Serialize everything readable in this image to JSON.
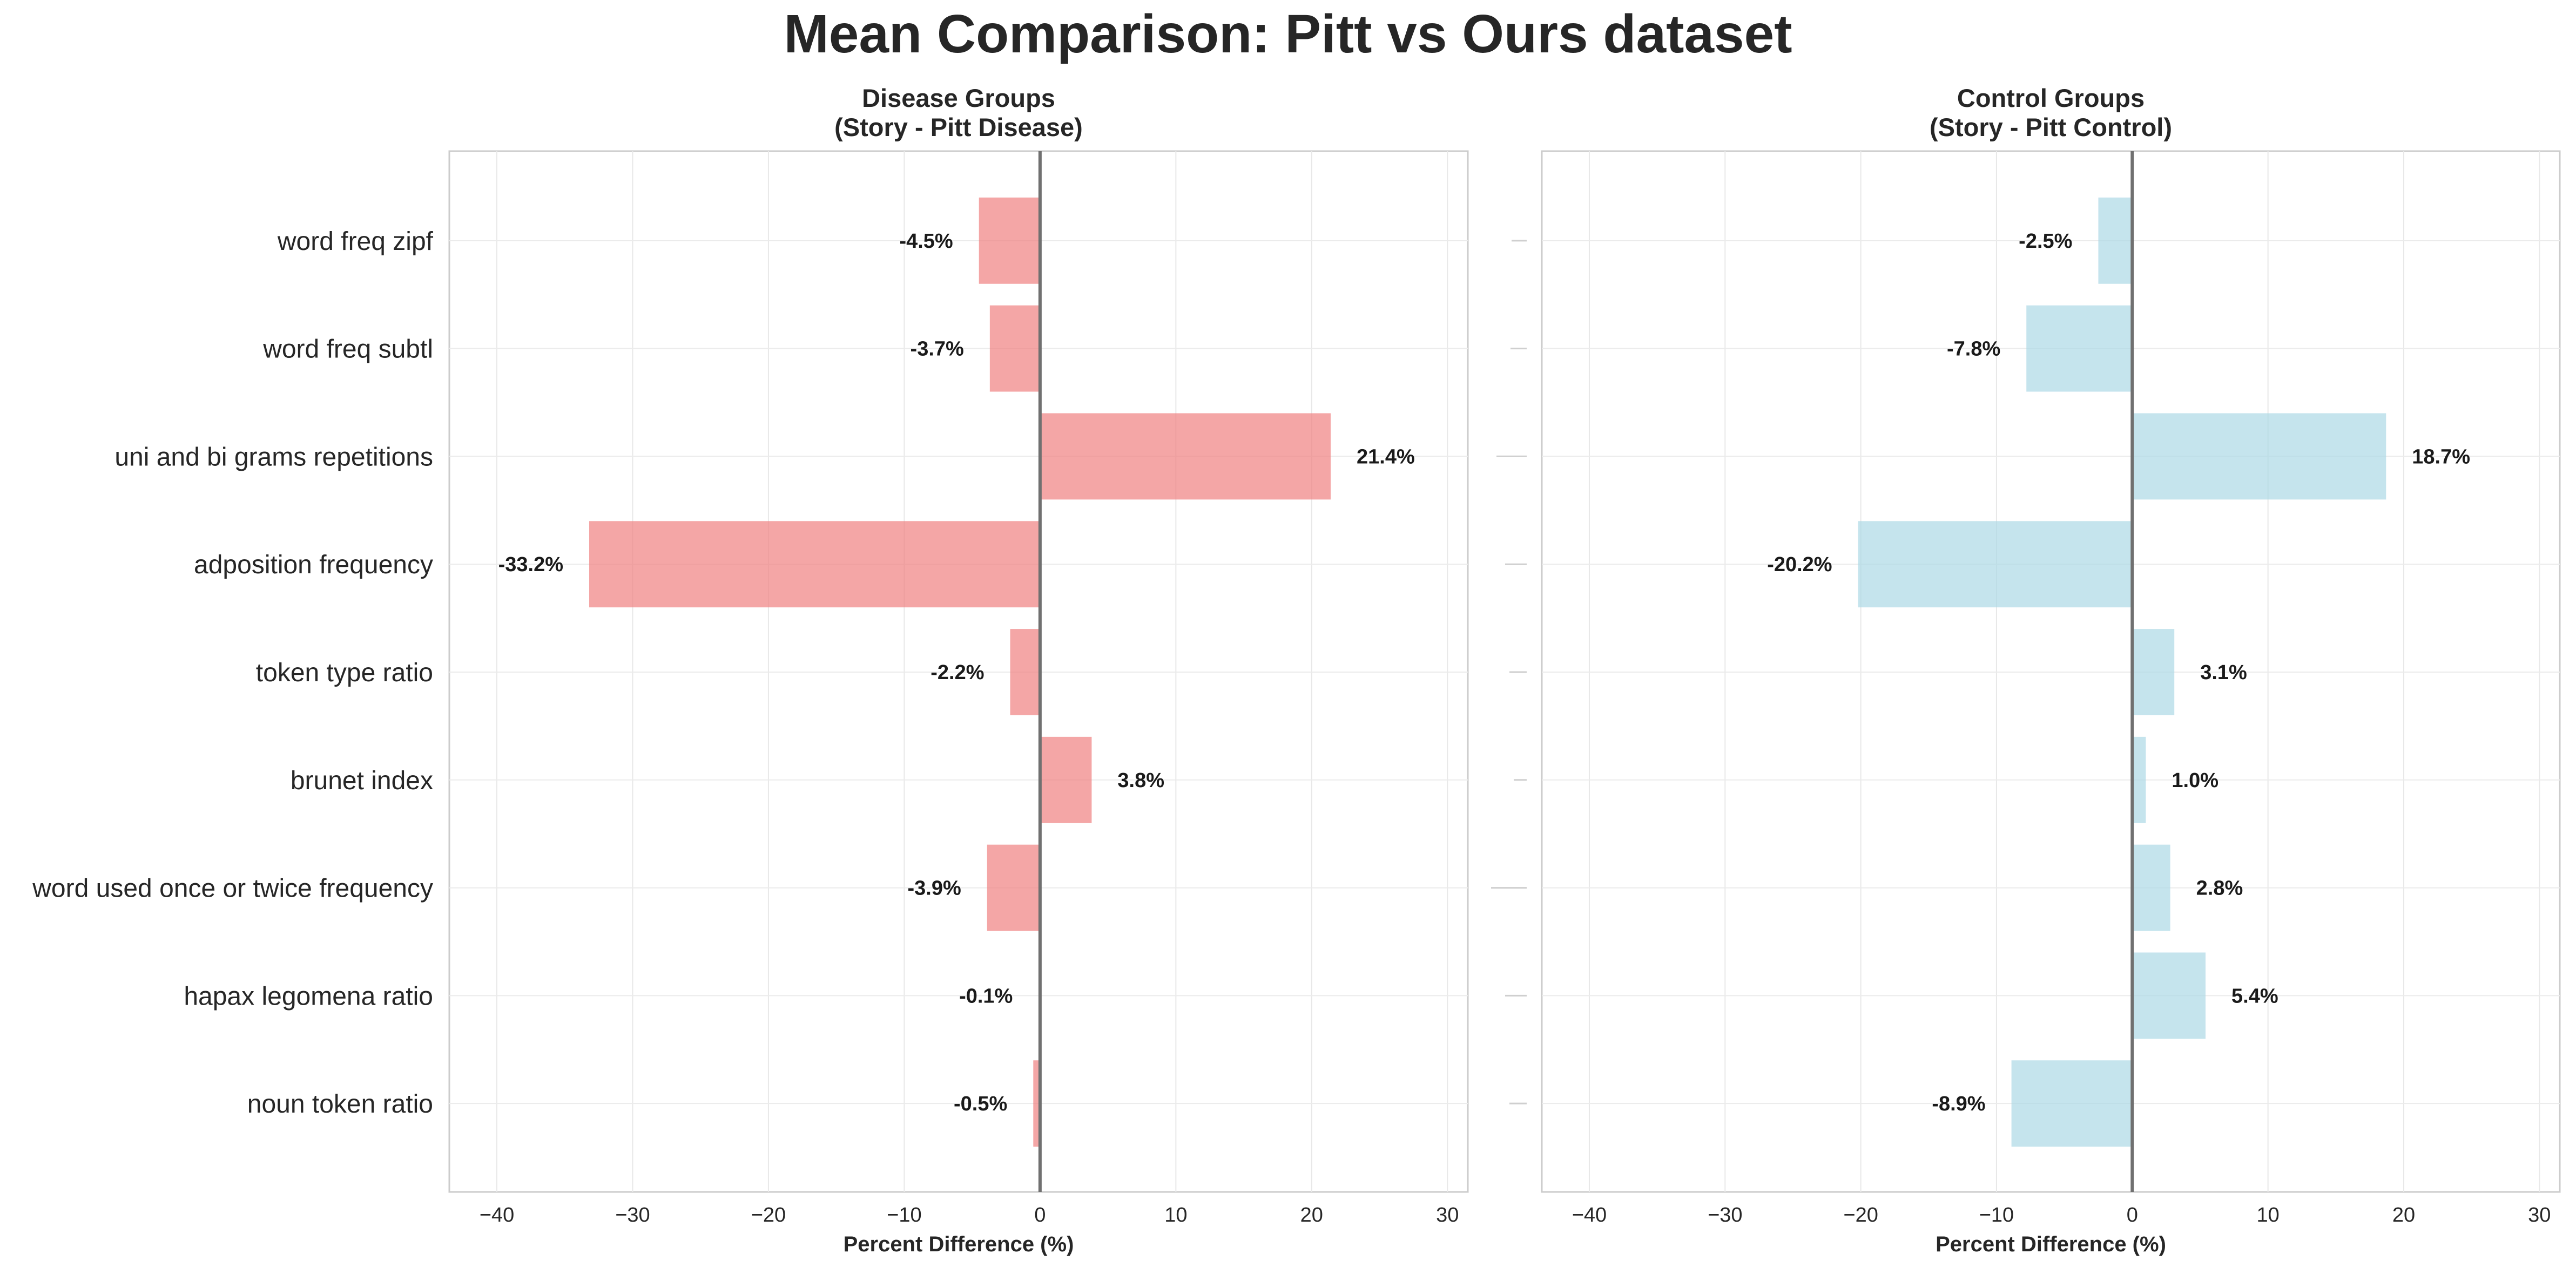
{
  "figure": {
    "title": "Mean Comparison: Pitt vs Ours dataset"
  },
  "chart_data": [
    {
      "type": "bar",
      "orientation": "horizontal",
      "title": "Disease Groups\n(Story - Pitt Disease)",
      "categories": [
        "word freq zipf",
        "word freq subtl",
        "uni and bi grams repetitions",
        "adposition frequency",
        "token type ratio",
        "brunet index",
        "word used once or twice frequency",
        "hapax legomena ratio",
        "noun token ratio"
      ],
      "values": [
        -4.5,
        -3.7,
        21.4,
        -33.2,
        -2.2,
        3.8,
        -3.9,
        -0.1,
        -0.5
      ],
      "data_labels": [
        "-4.5%",
        "-3.7%",
        "21.4%",
        "-33.2%",
        "-2.2%",
        "3.8%",
        "-3.9%",
        "-0.1%",
        "-0.5%"
      ],
      "xlabel": "Percent Difference (%)",
      "ylabel": "",
      "xlim": [
        -43.5,
        31.5
      ],
      "xticks": [
        -40,
        -30,
        -20,
        -10,
        0,
        10,
        20,
        30
      ],
      "xtick_labels": [
        "−40",
        "−30",
        "−20",
        "−10",
        "0",
        "10",
        "20",
        "30"
      ],
      "grid": true,
      "color": "#f08080"
    },
    {
      "type": "bar",
      "orientation": "horizontal",
      "title": "Control Groups\n(Story - Pitt Control)",
      "categories": [
        "word freq zipf",
        "word freq subtl",
        "uni and bi grams repetitions",
        "adposition frequency",
        "token type ratio",
        "brunet index",
        "word used once or twice frequency",
        "hapax legomena ratio",
        "noun token ratio"
      ],
      "values": [
        -2.5,
        -7.8,
        18.7,
        -20.2,
        3.1,
        1.0,
        2.8,
        5.4,
        -8.9
      ],
      "data_labels": [
        "-2.5%",
        "-7.8%",
        "18.7%",
        "-20.2%",
        "3.1%",
        "1.0%",
        "2.8%",
        "5.4%",
        "-8.9%"
      ],
      "xlabel": "Percent Difference (%)",
      "ylabel": "",
      "xlim": [
        -43.5,
        31.5
      ],
      "xticks": [
        -40,
        -30,
        -20,
        -10,
        0,
        10,
        20,
        30
      ],
      "xtick_labels": [
        "−40",
        "−30",
        "−20",
        "−10",
        "0",
        "10",
        "20",
        "30"
      ],
      "grid": true,
      "color": "#add8e6"
    }
  ]
}
